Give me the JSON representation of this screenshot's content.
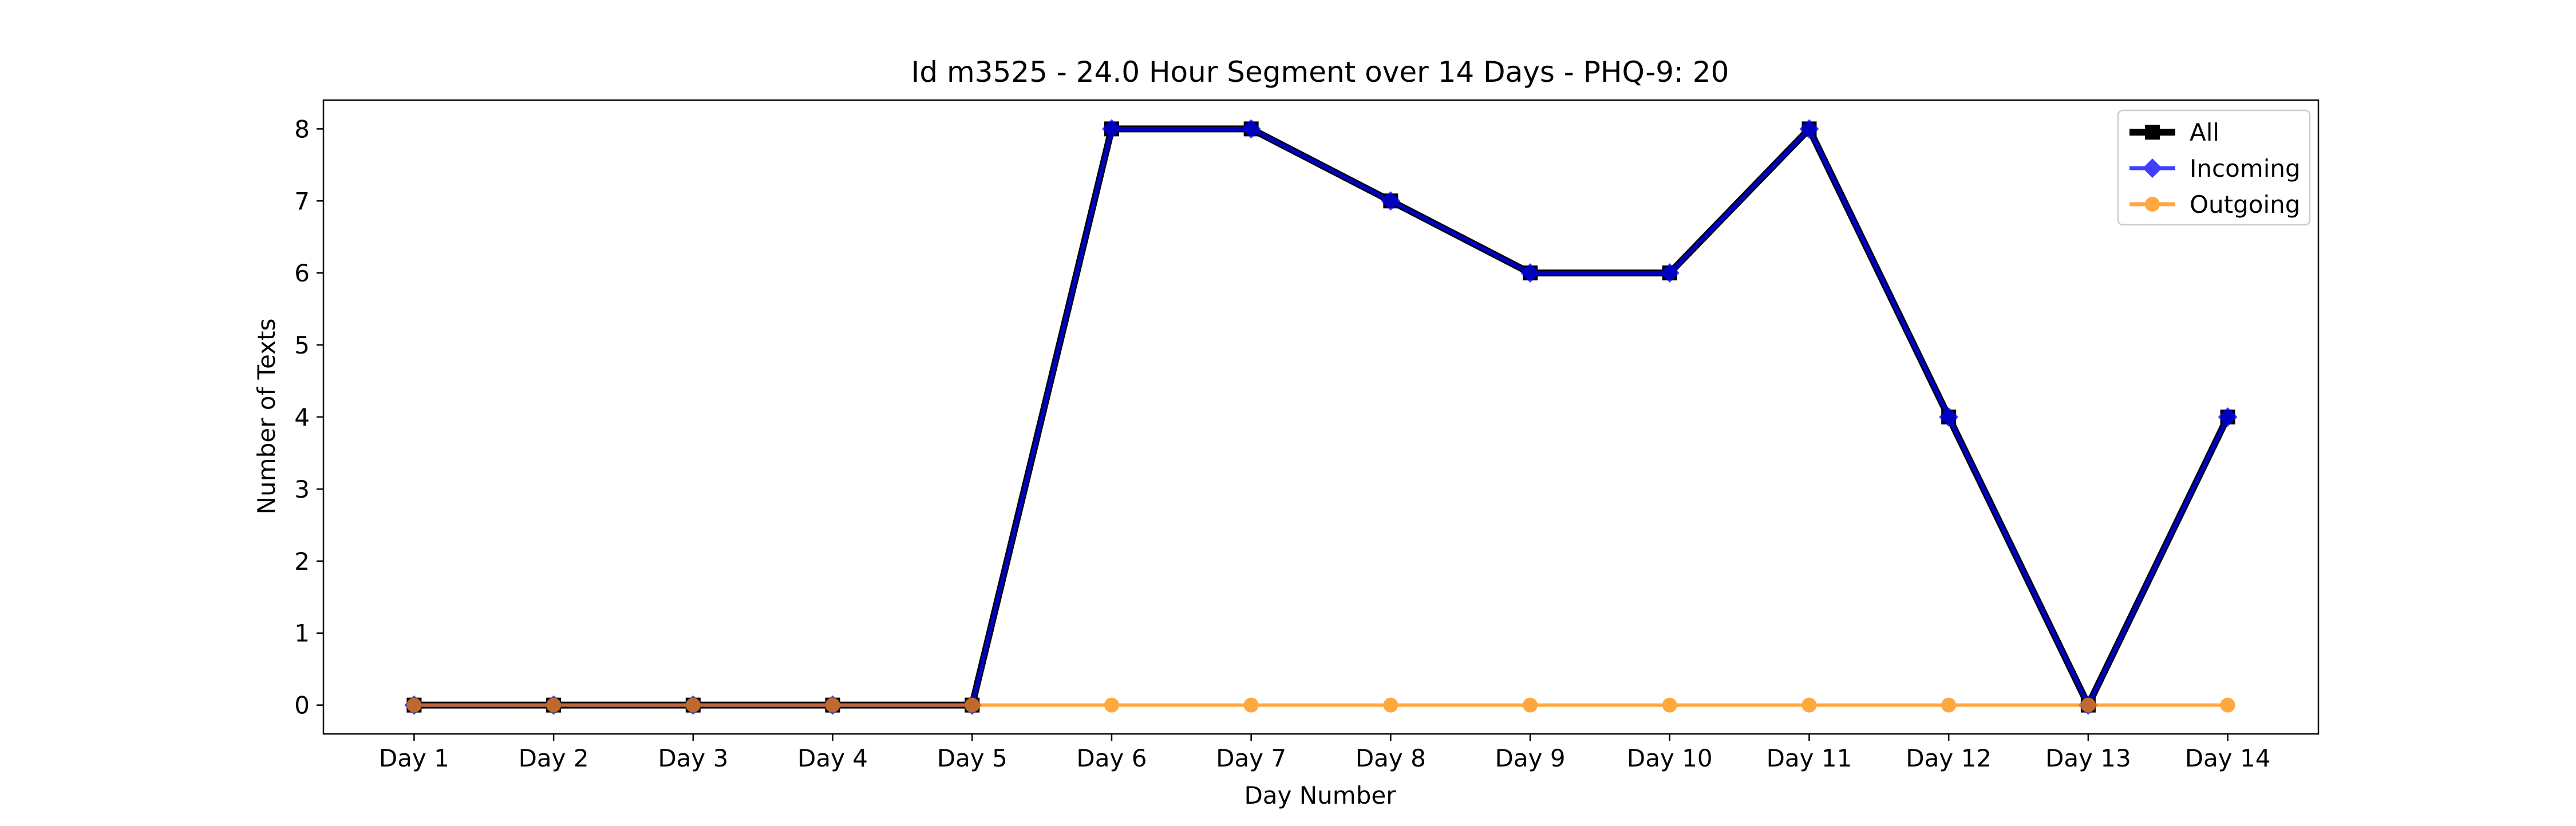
{
  "chart_data": {
    "type": "line",
    "title": "Id m3525 - 24.0 Hour Segment over 14 Days - PHQ-9: 20",
    "xlabel": "Day Number",
    "ylabel": "Number of Texts",
    "categories": [
      "Day 1",
      "Day 2",
      "Day 3",
      "Day 4",
      "Day 5",
      "Day 6",
      "Day 7",
      "Day 8",
      "Day 9",
      "Day 10",
      "Day 11",
      "Day 12",
      "Day 13",
      "Day 14"
    ],
    "ylim": [
      -0.4,
      8.4
    ],
    "yticks": [
      0,
      1,
      2,
      3,
      4,
      5,
      6,
      7,
      8
    ],
    "grid": false,
    "legend_position": "top-right",
    "series": [
      {
        "name": "All",
        "color": "#000000",
        "marker": "square",
        "values": [
          0,
          0,
          0,
          0,
          0,
          8,
          8,
          7,
          6,
          6,
          8,
          4,
          0,
          4
        ]
      },
      {
        "name": "Incoming",
        "color": "#0000ff",
        "marker": "diamond",
        "values": [
          0,
          0,
          0,
          0,
          0,
          8,
          8,
          7,
          6,
          6,
          8,
          4,
          0,
          4
        ]
      },
      {
        "name": "Outgoing",
        "color": "#ff8c00",
        "marker": "circle",
        "values": [
          0,
          0,
          0,
          0,
          0,
          0,
          0,
          0,
          0,
          0,
          0,
          0,
          0,
          0
        ]
      }
    ]
  }
}
